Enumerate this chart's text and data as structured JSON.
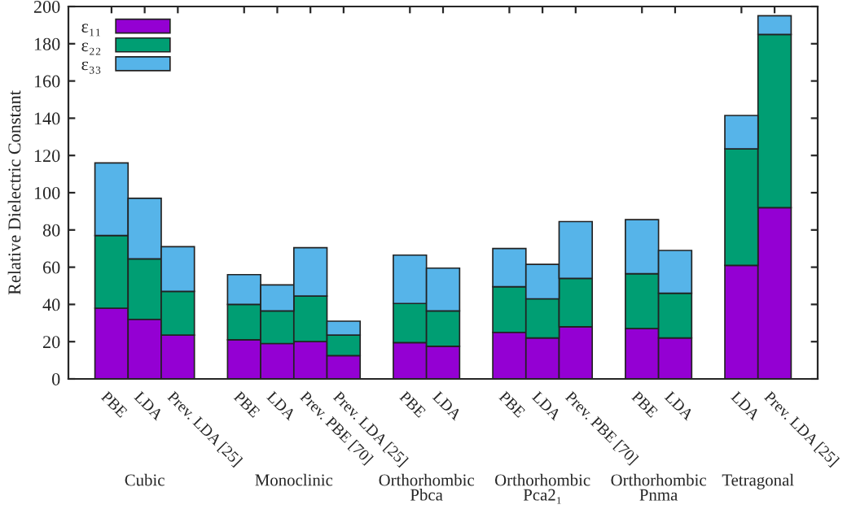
{
  "chart_data": {
    "type": "bar",
    "stacked": true,
    "ylabel": "Relative Dielectric Constant",
    "categories": [
      "PBE",
      "LDA",
      "Prev. LDA [25]",
      null,
      "PBE",
      "LDA",
      "Prev. PBE [70]",
      "Prev. LDA [25]",
      null,
      "PBE",
      "LDA",
      null,
      "PBE",
      "LDA",
      "Prev. PBE [70]",
      null,
      "PBE",
      "LDA",
      null,
      "LDA",
      "Prev. LDA [25]"
    ],
    "series": [
      {
        "name": "ε₁₁",
        "color": "#9400d3",
        "values": [
          38,
          32,
          23.5,
          null,
          21,
          19,
          20,
          12.5,
          null,
          19.5,
          17.5,
          null,
          25,
          22,
          28,
          null,
          27,
          22,
          null,
          61,
          92
        ]
      },
      {
        "name": "ε₂₂",
        "color": "#009e73",
        "values": [
          39,
          32.5,
          23.5,
          null,
          19,
          17.5,
          24.5,
          11,
          null,
          21,
          19,
          null,
          24.5,
          21,
          26,
          null,
          29.5,
          24,
          null,
          62.5,
          93
        ]
      },
      {
        "name": "ε₃₃",
        "color": "#56b4e9",
        "values": [
          39,
          32.5,
          24,
          null,
          16,
          14,
          26,
          7.5,
          null,
          26,
          23,
          null,
          20.5,
          18.5,
          30.5,
          null,
          29,
          23,
          null,
          18,
          10
        ]
      }
    ],
    "annotations": [
      "Cubic",
      "Monoclinic",
      "Orthorhombic\nPbca",
      "Orthorhombic\nPca2₁",
      "Orthorhombic\nPnma",
      "Tetragonal"
    ],
    "ylim": [
      0,
      200
    ],
    "yticks": [
      0,
      20,
      40,
      60,
      80,
      100,
      120,
      140,
      160,
      180,
      200
    ],
    "grid": false,
    "legend": "top left"
  }
}
